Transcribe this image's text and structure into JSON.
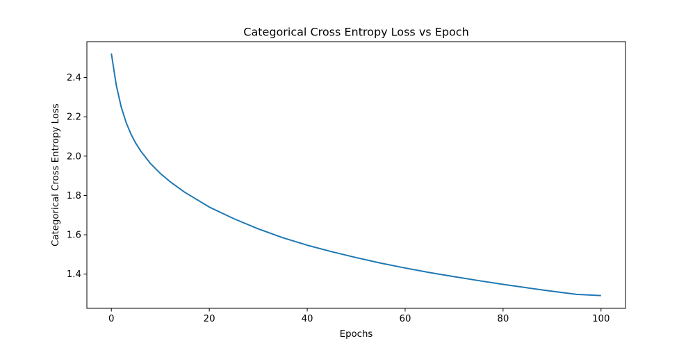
{
  "chart_data": {
    "type": "line",
    "title": "Categorical Cross Entropy Loss vs Epoch",
    "xlabel": "Epochs",
    "ylabel": "Categorical Cross Entropy Loss",
    "xlim": [
      -5,
      105
    ],
    "ylim": [
      1.226,
      2.582
    ],
    "xticks": [
      0,
      20,
      40,
      60,
      80,
      100
    ],
    "xtick_labels": [
      "0",
      "20",
      "40",
      "60",
      "80",
      "100"
    ],
    "yticks": [
      1.4,
      1.6,
      1.8,
      2.0,
      2.2,
      2.4
    ],
    "ytick_labels": [
      "1.4",
      "1.6",
      "1.8",
      "2.0",
      "2.2",
      "2.4"
    ],
    "grid": false,
    "legend": "none",
    "series": [
      {
        "color": "#1f77b4",
        "x": [
          0,
          1,
          2,
          3,
          4,
          5,
          6,
          8,
          10,
          12,
          15,
          20,
          25,
          30,
          35,
          40,
          45,
          50,
          55,
          60,
          65,
          70,
          75,
          80,
          85,
          90,
          95,
          100
        ],
        "y": [
          2.522,
          2.361,
          2.251,
          2.172,
          2.112,
          2.065,
          2.026,
          1.962,
          1.912,
          1.87,
          1.816,
          1.741,
          1.682,
          1.63,
          1.585,
          1.547,
          1.514,
          1.484,
          1.456,
          1.431,
          1.408,
          1.387,
          1.367,
          1.348,
          1.33,
          1.313,
          1.297,
          1.291
        ]
      }
    ]
  }
}
